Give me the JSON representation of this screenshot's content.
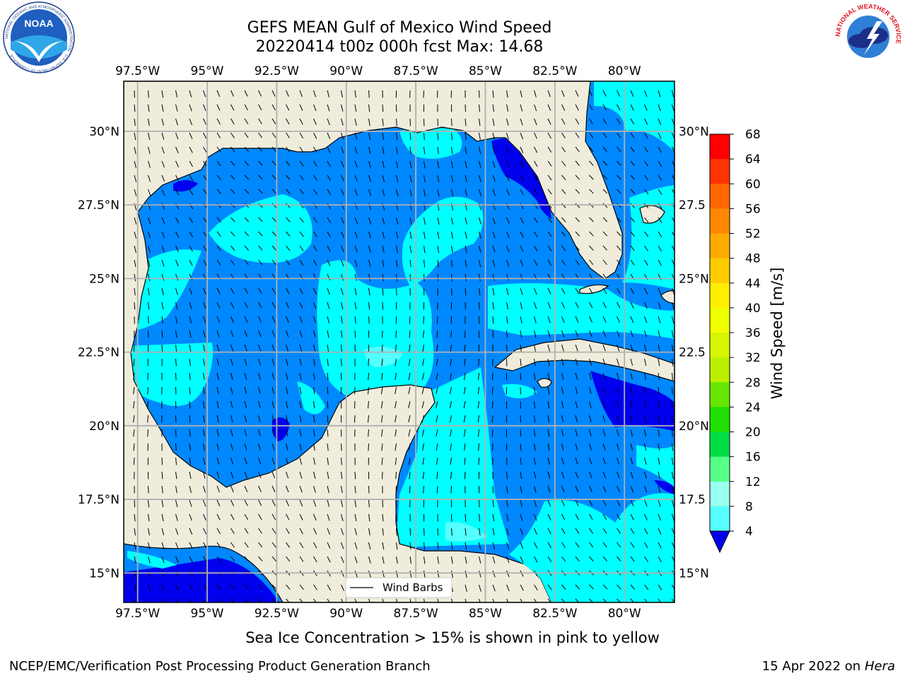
{
  "title_line1": "GEFS MEAN Gulf of Mexico Wind Speed",
  "title_line2": "20220414 t00z 000h fcst   Max: 14.68",
  "map": {
    "lon_labels": [
      "97.5°W",
      "95°W",
      "92.5°W",
      "90°W",
      "87.5°W",
      "85°W",
      "82.5°W",
      "80°W"
    ],
    "lon_values": [
      -97.5,
      -95,
      -92.5,
      -90,
      -87.5,
      -85,
      -82.5,
      -80
    ],
    "lat_labels": [
      "30°N",
      "27.5°N",
      "25°N",
      "22.5°N",
      "20°N",
      "17.5°N",
      "15°N"
    ],
    "lat_labels_right": [
      "30°N",
      "27.5",
      "25°N",
      "22.5",
      "20°N",
      "17.5",
      "15°N"
    ],
    "lat_values": [
      30,
      27.5,
      25,
      22.5,
      20,
      17.5,
      15
    ],
    "extent_lon": [
      -98,
      -78.2
    ],
    "extent_lat": [
      14,
      31.7
    ],
    "land_color": "#efecdc",
    "grid_color": "#b0b0b0",
    "legend_label": "Wind Barbs"
  },
  "colorbar": {
    "label": "Wind Speed [m/s]",
    "ticks": [
      "68",
      "64",
      "60",
      "56",
      "52",
      "48",
      "44",
      "40",
      "36",
      "32",
      "28",
      "24",
      "20",
      "16",
      "12",
      "8",
      "4"
    ],
    "colors": [
      "#ff0000",
      "#ff3300",
      "#ff6600",
      "#ff8800",
      "#ffaa00",
      "#ffcc00",
      "#ffee00",
      "#f0ff00",
      "#d8f500",
      "#b8f000",
      "#66e600",
      "#22dd00",
      "#00dd44",
      "#55ff88",
      "#99ffee",
      "#55ffff",
      "#00ffff",
      "#0088ff"
    ],
    "under_color": "#0000ee"
  },
  "footer": {
    "note": "Sea Ice Concentration > 15% is shown in pink to yellow",
    "left": "NCEP/EMC/Verification Post Processing Product Generation Branch",
    "right_date": "15 Apr 2022 on",
    "right_host": "Hera"
  },
  "logos": {
    "noaa_text": "NOAA",
    "noaa_ring": "NATIONAL OCEANIC AND ATMOSPHERIC ADMINISTRATION · U.S. DEPARTMENT OF COMMERCE",
    "nws_ring": "NATIONAL WEATHER SERVICE"
  }
}
